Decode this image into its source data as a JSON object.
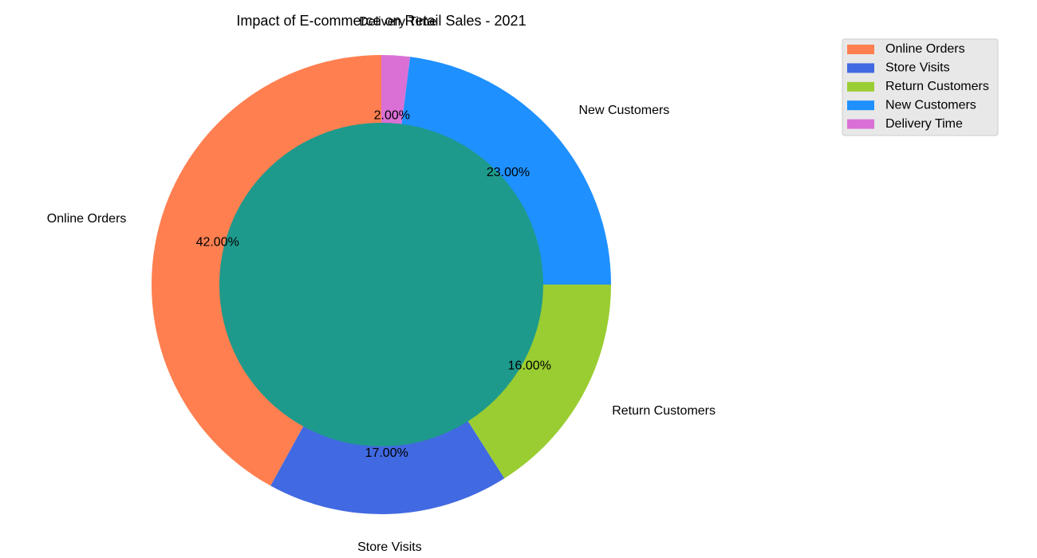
{
  "chart_data": {
    "type": "pie",
    "variant": "donut",
    "title": "Impact of E-commerce on Retail Sales - 2021",
    "slices": [
      {
        "label": "Online Orders",
        "value": 42,
        "pct_label": "42.00%",
        "color": "#ff7f50"
      },
      {
        "label": "Store Visits",
        "value": 17,
        "pct_label": "17.00%",
        "color": "#4169e1"
      },
      {
        "label": "Return Customers",
        "value": 16,
        "pct_label": "16.00%",
        "color": "#9acd32"
      },
      {
        "label": "New Customers",
        "value": 23,
        "pct_label": "23.00%",
        "color": "#1e90ff"
      },
      {
        "label": "Delivery Time",
        "value": 2,
        "pct_label": "2.00%",
        "color": "#da70d6"
      }
    ],
    "start_angle_deg": 90,
    "direction": "counterclockwise",
    "center_color": "#1e9a8c",
    "legend": {
      "placement": "top-right",
      "entries": [
        "Online Orders",
        "Store Visits",
        "Return Customers",
        "New Customers",
        "Delivery Time"
      ]
    },
    "legend_background": "#e8e8e8"
  }
}
